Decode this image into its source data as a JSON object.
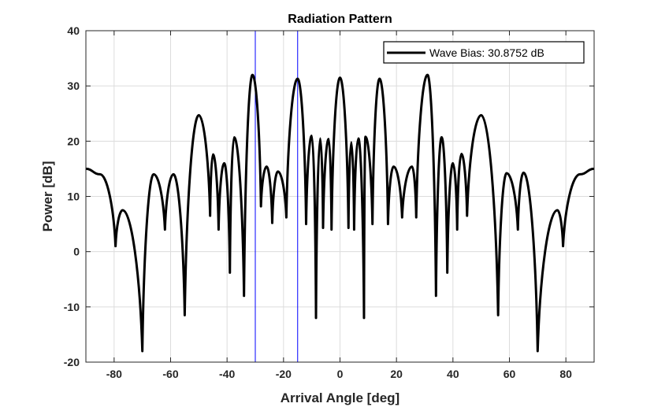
{
  "chart_data": {
    "type": "line",
    "title": "Radiation Pattern",
    "xlabel": "Arrival Angle [deg]",
    "ylabel": "Power [dB]",
    "xlim": [
      -90,
      90
    ],
    "ylim": [
      -20,
      40
    ],
    "xticks": [
      -80,
      -60,
      -40,
      -20,
      0,
      20,
      40,
      60,
      80
    ],
    "yticks": [
      -20,
      -10,
      0,
      10,
      20,
      30,
      40
    ],
    "grid": true,
    "legend": {
      "label": "Wave Bias: 30.8752 dB",
      "placement": "top-right"
    },
    "vertical_markers": [
      -30,
      -15
    ],
    "series": [
      {
        "name": "Wave Bias: 30.8752 dB",
        "color": "#000000",
        "peaks": [
          [
            -90,
            15
          ],
          [
            -85,
            14
          ],
          [
            -77,
            7.5
          ],
          [
            -66,
            14
          ],
          [
            -59,
            14
          ],
          [
            -50,
            24.7
          ],
          [
            -45,
            17.6
          ],
          [
            -41,
            16
          ],
          [
            -37.5,
            20.7
          ],
          [
            -31,
            32
          ],
          [
            -26,
            15.4
          ],
          [
            -22,
            14.5
          ],
          [
            -15,
            31.3
          ],
          [
            -10,
            21
          ],
          [
            -7,
            20.5
          ],
          [
            -4,
            20.4
          ],
          [
            0,
            31.5
          ],
          [
            4,
            19.8
          ],
          [
            6.5,
            20.5
          ],
          [
            9,
            20.8
          ],
          [
            14,
            31.3
          ],
          [
            19,
            15.4
          ],
          [
            25.5,
            15.4
          ],
          [
            31,
            32
          ],
          [
            36,
            20.7
          ],
          [
            40,
            16
          ],
          [
            43,
            17.7
          ],
          [
            50,
            24.7
          ],
          [
            59,
            14.2
          ],
          [
            65,
            14.3
          ],
          [
            77,
            7.5
          ],
          [
            85,
            14
          ],
          [
            90,
            15
          ]
        ],
        "nulls": [
          [
            -79.5,
            1
          ],
          [
            -70,
            -18
          ],
          [
            -62,
            4
          ],
          [
            -55,
            -11.5
          ],
          [
            -46,
            6.5
          ],
          [
            -43,
            4
          ],
          [
            -39,
            -3.8
          ],
          [
            -34,
            -8
          ],
          [
            -28,
            8.2
          ],
          [
            -24,
            5.2
          ],
          [
            -19,
            6.2
          ],
          [
            -12,
            5
          ],
          [
            -8.5,
            -12
          ],
          [
            -6,
            4.3
          ],
          [
            -3,
            4
          ],
          [
            3,
            4.3
          ],
          [
            5,
            4
          ],
          [
            8.5,
            -12
          ],
          [
            11.5,
            5
          ],
          [
            17,
            5
          ],
          [
            22,
            6.2
          ],
          [
            27,
            6.2
          ],
          [
            34,
            -8
          ],
          [
            38,
            -3.8
          ],
          [
            41.5,
            4
          ],
          [
            45,
            6.5
          ],
          [
            56,
            -11.5
          ],
          [
            63,
            4
          ],
          [
            70,
            -18
          ],
          [
            79,
            1
          ]
        ]
      }
    ],
    "marker_color": "#0000ff"
  }
}
